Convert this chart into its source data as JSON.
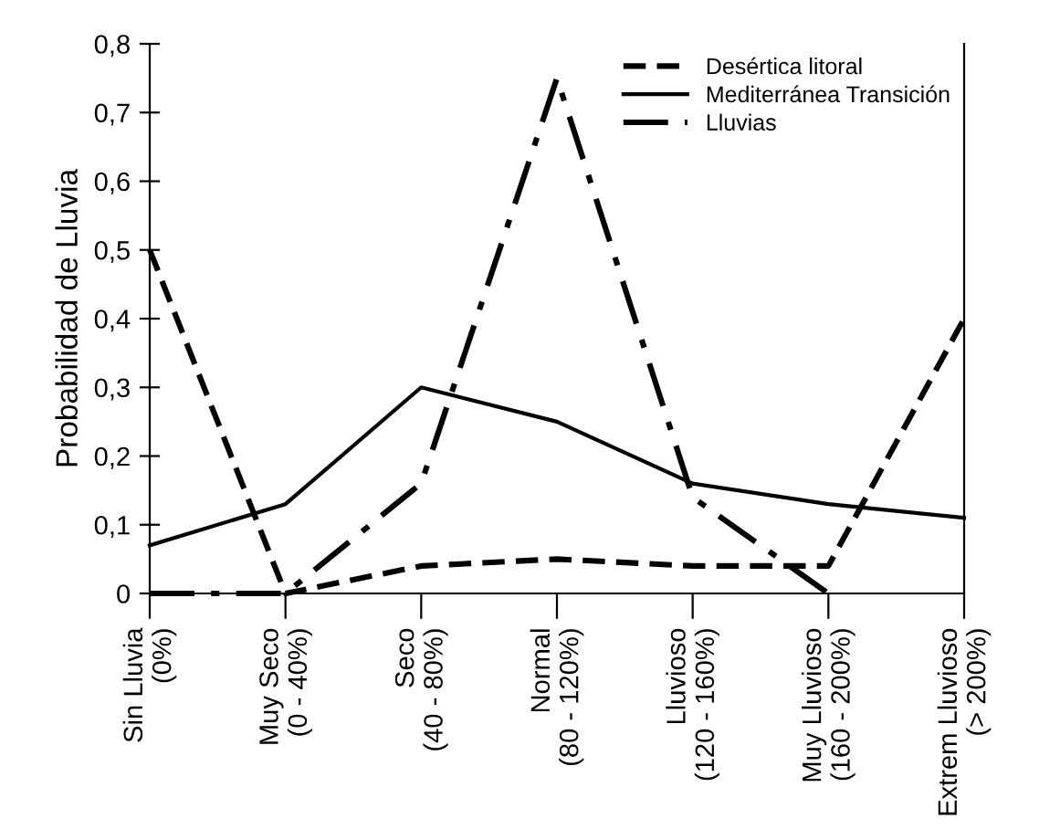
{
  "chart_data": {
    "type": "line",
    "ylabel": "Probabilidad de Lluvia",
    "categories": [
      "Sin Lluvia\n(0%)",
      "Muy Seco\n(0 - 40%)",
      "Seco\n(40 - 80%)",
      "Normal\n(80 - 120%)",
      "Lluvioso\n(120 - 160%)",
      "Muy Lluvioso\n(160 - 200%)",
      "Extrem Lluvioso\n(> 200%)"
    ],
    "series": [
      {
        "name": "Desértica litoral",
        "color": "#000000",
        "line_style": "dashed",
        "values": [
          0.5,
          0,
          0.04,
          0.05,
          0.04,
          0.04,
          0.4
        ]
      },
      {
        "name": "Mediterránea Transición",
        "color": "#000000",
        "line_style": "solid",
        "values": [
          0.07,
          0.13,
          0.3,
          0.25,
          0.16,
          0.13,
          0.11
        ]
      },
      {
        "name": "Lluvias",
        "color": "#000000",
        "line_style": "dashdot",
        "values": [
          0,
          0,
          0.16,
          0.75,
          0.14,
          0,
          null
        ]
      }
    ],
    "ylim": [
      0,
      0.8
    ],
    "yticks": [
      {
        "value": 0,
        "label": "0"
      },
      {
        "value": 0.1,
        "label": "0,1"
      },
      {
        "value": 0.2,
        "label": "0,2"
      },
      {
        "value": 0.3,
        "label": "0,3"
      },
      {
        "value": 0.4,
        "label": "0,4"
      },
      {
        "value": 0.5,
        "label": "0,5"
      },
      {
        "value": 0.6,
        "label": "0,6"
      },
      {
        "value": 0.7,
        "label": "0,7"
      },
      {
        "value": 0.8,
        "label": "0,8"
      }
    ],
    "grid": false,
    "legend": "top right",
    "marker": "none"
  }
}
